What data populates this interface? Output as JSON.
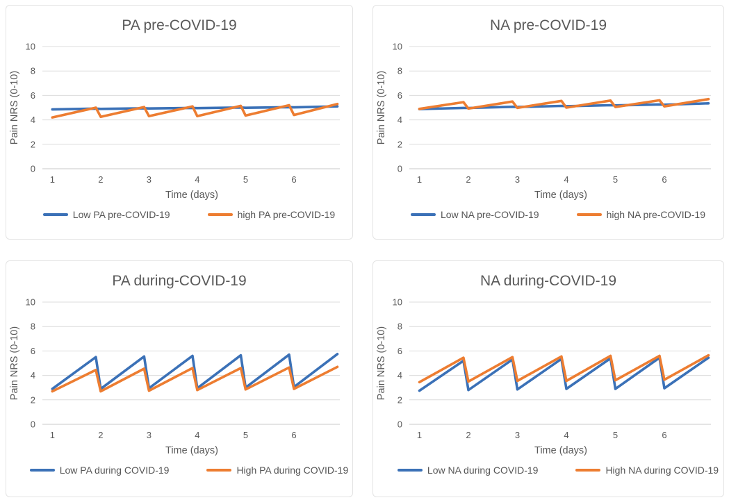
{
  "colors": {
    "series_blue": "#3b71b7",
    "series_orange": "#ed7d31",
    "title_text": "#595959",
    "tick_text": "#595959",
    "axis_title_text": "#595959",
    "gridline": "#dcdcdc",
    "axis_line": "#c8c8c8",
    "panel_border": "#e3e3e3",
    "background": "#ffffff"
  },
  "chart_data": [
    {
      "type": "line",
      "title": "PA pre-COVID-19",
      "xlabel": "Time (days)",
      "ylabel": "Pain NRS (0-10)",
      "xlim": [
        0.88,
        6.95
      ],
      "ylim": [
        0,
        10
      ],
      "yticks": [
        0,
        2,
        4,
        6,
        8,
        10
      ],
      "xticks": [
        1,
        2,
        3,
        4,
        5,
        6
      ],
      "grid": true,
      "legend_position": "bottom",
      "x": [
        1,
        1.9,
        2,
        2.9,
        3,
        3.9,
        4,
        4.9,
        5,
        5.9,
        6,
        6.9
      ],
      "series": [
        {
          "name": "Low PA pre-COVID-19",
          "color": "blue",
          "values": [
            4.85,
            4.92,
            4.9,
            4.95,
            4.93,
            4.98,
            4.96,
            5.01,
            4.99,
            5.04,
            5.02,
            5.1
          ]
        },
        {
          "name": "high PA pre-COVID-19",
          "color": "orange",
          "values": [
            4.2,
            5.0,
            4.25,
            5.05,
            4.3,
            5.1,
            4.3,
            5.15,
            4.35,
            5.2,
            4.4,
            5.3
          ]
        }
      ]
    },
    {
      "type": "line",
      "title": "NA pre-COVID-19",
      "xlabel": "Time (days)",
      "ylabel": "Pain NRS (0-10)",
      "xlim": [
        0.88,
        6.95
      ],
      "ylim": [
        0,
        10
      ],
      "yticks": [
        0,
        2,
        4,
        6,
        8,
        10
      ],
      "xticks": [
        1,
        2,
        3,
        4,
        5,
        6
      ],
      "grid": true,
      "legend_position": "bottom",
      "x": [
        1,
        1.9,
        2,
        2.9,
        3,
        3.9,
        4,
        4.9,
        5,
        5.9,
        6,
        6.9
      ],
      "series": [
        {
          "name": "Low NA pre-COVID-19",
          "color": "blue",
          "values": [
            4.88,
            4.98,
            4.97,
            5.07,
            5.05,
            5.14,
            5.12,
            5.2,
            5.18,
            5.26,
            5.24,
            5.35
          ]
        },
        {
          "name": "high NA pre-COVID-19",
          "color": "orange",
          "values": [
            4.9,
            5.45,
            4.92,
            5.5,
            4.98,
            5.55,
            5.0,
            5.58,
            5.05,
            5.6,
            5.1,
            5.7
          ]
        }
      ]
    },
    {
      "type": "line",
      "title": "PA during-COVID-19",
      "xlabel": "Time (days)",
      "ylabel": "Pain NRS (0-10)",
      "xlim": [
        0.88,
        6.95
      ],
      "ylim": [
        0,
        10
      ],
      "yticks": [
        0,
        2,
        4,
        6,
        8,
        10
      ],
      "xticks": [
        1,
        2,
        3,
        4,
        5,
        6
      ],
      "grid": true,
      "legend_position": "bottom",
      "x": [
        1,
        1.9,
        2,
        2.9,
        3,
        3.9,
        4,
        4.9,
        5,
        5.9,
        6,
        6.9
      ],
      "series": [
        {
          "name": "Low PA during COVID-19",
          "color": "blue",
          "values": [
            2.9,
            5.5,
            2.9,
            5.55,
            2.95,
            5.6,
            2.95,
            5.65,
            3.0,
            5.7,
            3.05,
            5.75
          ]
        },
        {
          "name": "High PA during COVID-19",
          "color": "orange",
          "values": [
            2.7,
            4.45,
            2.7,
            4.55,
            2.75,
            4.6,
            2.8,
            4.6,
            2.85,
            4.65,
            2.9,
            4.7
          ]
        }
      ]
    },
    {
      "type": "line",
      "title": "NA during-COVID-19",
      "xlabel": "Time (days)",
      "ylabel": "Pain NRS (0-10)",
      "xlim": [
        0.88,
        6.95
      ],
      "ylim": [
        0,
        10
      ],
      "yticks": [
        0,
        2,
        4,
        6,
        8,
        10
      ],
      "xticks": [
        1,
        2,
        3,
        4,
        5,
        6
      ],
      "grid": true,
      "legend_position": "bottom",
      "x": [
        1,
        1.9,
        2,
        2.9,
        3,
        3.9,
        4,
        4.9,
        5,
        5.9,
        6,
        6.9
      ],
      "series": [
        {
          "name": "Low NA during COVID-19",
          "color": "blue",
          "values": [
            2.75,
            5.2,
            2.8,
            5.3,
            2.85,
            5.35,
            2.9,
            5.4,
            2.9,
            5.45,
            2.95,
            5.45
          ]
        },
        {
          "name": "High NA during COVID-19",
          "color": "orange",
          "values": [
            3.45,
            5.45,
            3.5,
            5.5,
            3.55,
            5.55,
            3.55,
            5.6,
            3.6,
            5.6,
            3.65,
            5.65
          ]
        }
      ]
    }
  ]
}
